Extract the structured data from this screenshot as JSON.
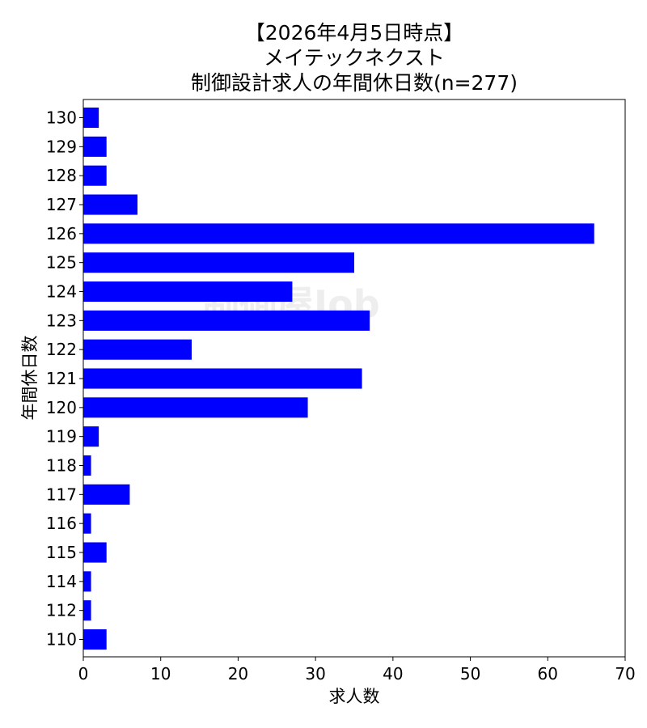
{
  "chart_data": {
    "type": "bar",
    "orientation": "horizontal",
    "title_lines": [
      "【2026年4月5日時点】",
      "メイテックネクスト",
      "制御設計求人の年間休日数(n=277)"
    ],
    "xlabel": "求人数",
    "ylabel": "年間休日数",
    "xlim": [
      0,
      70
    ],
    "xticks": [
      0,
      10,
      20,
      30,
      40,
      50,
      60,
      70
    ],
    "categories": [
      "130",
      "129",
      "128",
      "127",
      "126",
      "125",
      "124",
      "123",
      "122",
      "121",
      "120",
      "119",
      "118",
      "117",
      "116",
      "115",
      "114",
      "112",
      "110"
    ],
    "values": [
      2,
      3,
      3,
      7,
      66,
      35,
      27,
      37,
      14,
      36,
      29,
      2,
      1,
      6,
      1,
      3,
      1,
      1,
      3
    ],
    "bar_color": "#0000ff",
    "grid": false,
    "legend": "none",
    "watermark": "制御屋Job"
  }
}
